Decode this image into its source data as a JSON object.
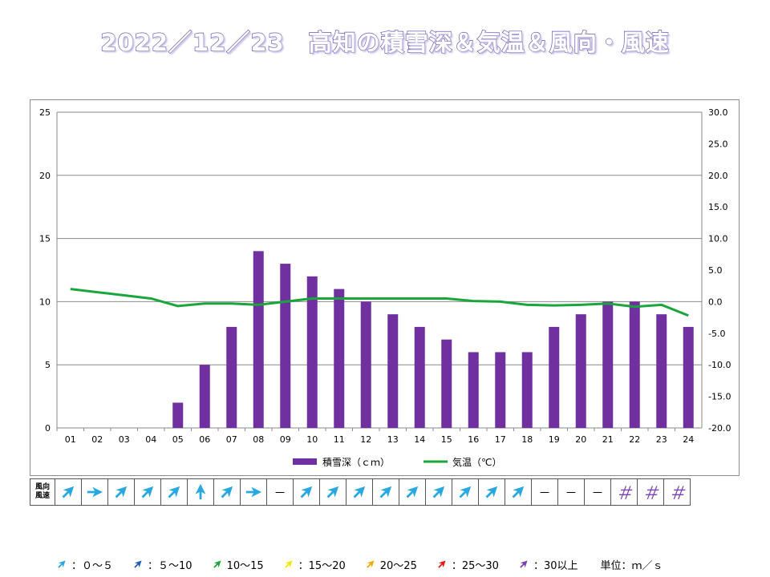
{
  "title": "2022／12／23　高知の積雪深＆気温＆風向・風速",
  "chart_data": {
    "type": "bar",
    "categories": [
      "01",
      "02",
      "03",
      "04",
      "05",
      "06",
      "07",
      "08",
      "09",
      "10",
      "11",
      "12",
      "13",
      "14",
      "15",
      "16",
      "17",
      "18",
      "19",
      "20",
      "21",
      "22",
      "23",
      "24"
    ],
    "series": [
      {
        "name": "積雪深（ｃｍ）",
        "type": "bar",
        "axis": "left",
        "color": "#7030a0",
        "values": [
          0,
          0,
          0,
          0,
          2,
          5,
          8,
          14,
          13,
          12,
          11,
          10,
          9,
          8,
          7,
          6,
          6,
          6,
          8,
          9,
          10,
          10,
          9,
          8
        ]
      },
      {
        "name": "気温（℃）",
        "type": "line",
        "axis": "right",
        "color": "#1aa63a",
        "values": [
          2.0,
          1.5,
          1.0,
          0.5,
          -0.7,
          -0.3,
          -0.3,
          -0.5,
          0.0,
          0.5,
          0.5,
          0.5,
          0.5,
          0.5,
          0.5,
          0.1,
          0.0,
          -0.5,
          -0.6,
          -0.5,
          -0.3,
          -0.8,
          -0.5,
          -2.2
        ]
      }
    ],
    "y_left": {
      "min": 0,
      "max": 25,
      "ticks": [
        "0",
        "5",
        "10",
        "15",
        "20",
        "25"
      ]
    },
    "y_right": {
      "min": -20,
      "max": 30,
      "ticks": [
        "-20.0",
        "-15.0",
        "-10.0",
        "-5.0",
        "0.0",
        "5.0",
        "10.0",
        "15.0",
        "20.0",
        "25.0",
        "30.0"
      ]
    },
    "grid": "horizontal",
    "legend_position": "bottom"
  },
  "wind_table": {
    "header": [
      "風向",
      "風速"
    ],
    "cells": [
      {
        "type": "arrow",
        "dir": "sw",
        "color": "#29a8e0"
      },
      {
        "type": "arrow",
        "dir": "w",
        "color": "#29a8e0"
      },
      {
        "type": "arrow",
        "dir": "sw",
        "color": "#29a8e0"
      },
      {
        "type": "arrow",
        "dir": "sw",
        "color": "#29a8e0"
      },
      {
        "type": "arrow",
        "dir": "sw",
        "color": "#29a8e0"
      },
      {
        "type": "arrow",
        "dir": "s",
        "color": "#29a8e0"
      },
      {
        "type": "arrow",
        "dir": "sw",
        "color": "#29a8e0"
      },
      {
        "type": "arrow",
        "dir": "w",
        "color": "#29a8e0"
      },
      {
        "type": "text",
        "text": "－"
      },
      {
        "type": "arrow",
        "dir": "sw",
        "color": "#29a8e0"
      },
      {
        "type": "arrow",
        "dir": "sw",
        "color": "#29a8e0"
      },
      {
        "type": "arrow",
        "dir": "sw",
        "color": "#29a8e0"
      },
      {
        "type": "arrow",
        "dir": "sw",
        "color": "#29a8e0"
      },
      {
        "type": "arrow",
        "dir": "sw",
        "color": "#29a8e0"
      },
      {
        "type": "arrow",
        "dir": "sw",
        "color": "#29a8e0"
      },
      {
        "type": "arrow",
        "dir": "sw",
        "color": "#29a8e0"
      },
      {
        "type": "arrow",
        "dir": "sw",
        "color": "#29a8e0"
      },
      {
        "type": "arrow",
        "dir": "sw",
        "color": "#29a8e0"
      },
      {
        "type": "text",
        "text": "－"
      },
      {
        "type": "text",
        "text": "－"
      },
      {
        "type": "text",
        "text": "－"
      },
      {
        "type": "hash",
        "text": "＃"
      },
      {
        "type": "hash",
        "text": "＃"
      },
      {
        "type": "hash",
        "text": "＃"
      }
    ]
  },
  "wind_legend": [
    {
      "color": "#29a8e0",
      "label": "：０～５"
    },
    {
      "color": "#1f5fb0",
      "label": "：５～10"
    },
    {
      "color": "#1aa63a",
      "label": "10～15"
    },
    {
      "color": "#f2e600",
      "label": "：15～20"
    },
    {
      "color": "#f2a800",
      "label": "20～25"
    },
    {
      "color": "#e81818",
      "label": "：25～30"
    },
    {
      "color": "#7a3fb0",
      "label": "：30以上"
    }
  ],
  "unit_label": "単位：ｍ／ｓ"
}
